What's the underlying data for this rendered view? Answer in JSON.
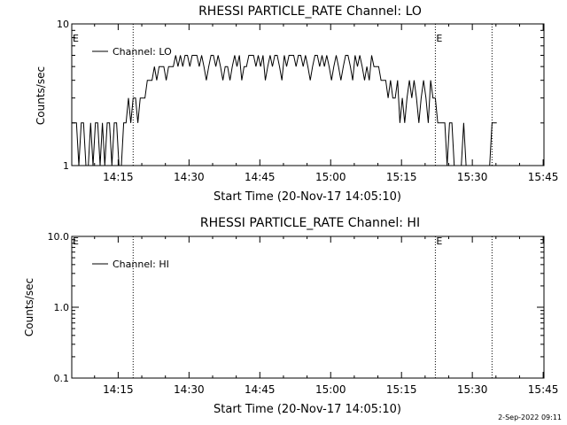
{
  "chart_data": [
    {
      "type": "line",
      "title": "RHESSI PARTICLE_RATE Channel: LO",
      "xlabel": "Start Time (20-Nov-17 14:05:10)",
      "ylabel": "Counts/sec",
      "yscale": "log",
      "ylim": [
        1,
        10
      ],
      "yticks": [
        {
          "v": 1,
          "label": "1"
        },
        {
          "v": 10,
          "label": "10"
        }
      ],
      "xticks": [
        "14:15",
        "14:30",
        "14:45",
        "15:00",
        "15:15",
        "15:30",
        "15:45"
      ],
      "xlim_minutes_after_start": [
        0,
        100
      ],
      "tick_minutes_after_start": [
        9.83,
        24.83,
        39.83,
        54.83,
        69.83,
        84.83,
        99.83
      ],
      "event_lines_minutes_after_start": [
        13,
        77,
        89
      ],
      "event_labels": [
        "E",
        "E"
      ],
      "legend": {
        "name": "Channel: LO",
        "position": "top-left"
      },
      "series": [
        {
          "name": "Channel: LO",
          "x": [
            0,
            0.5,
            1,
            1.5,
            2,
            2.5,
            3,
            3.5,
            4,
            4.5,
            5,
            5.5,
            6,
            6.5,
            7,
            7.5,
            8,
            8.5,
            9,
            9.5,
            10,
            10.5,
            11,
            11.5,
            12,
            12.5,
            13,
            13.5,
            14,
            14.5,
            15,
            15.5,
            16,
            16.5,
            17,
            17.5,
            18,
            18.5,
            19,
            19.5,
            20,
            20.5,
            21,
            21.5,
            22,
            22.5,
            23,
            23.5,
            24,
            24.5,
            25,
            25.5,
            26,
            26.5,
            27,
            27.5,
            28,
            28.5,
            29,
            29.5,
            30,
            30.5,
            31,
            31.5,
            32,
            32.5,
            33,
            33.5,
            34,
            34.5,
            35,
            35.5,
            36,
            36.5,
            37,
            37.5,
            38,
            38.5,
            39,
            39.5,
            40,
            40.5,
            41,
            41.5,
            42,
            42.5,
            43,
            43.5,
            44,
            44.5,
            45,
            45.5,
            46,
            46.5,
            47,
            47.5,
            48,
            48.5,
            49,
            49.5,
            50,
            50.5,
            51,
            51.5,
            52,
            52.5,
            53,
            53.5,
            54,
            54.5,
            55,
            55.5,
            56,
            56.5,
            57,
            57.5,
            58,
            58.5,
            59,
            59.5,
            60,
            60.5,
            61,
            61.5,
            62,
            62.5,
            63,
            63.5,
            64,
            64.5,
            65,
            65.5,
            66,
            66.5,
            67,
            67.5,
            68,
            68.5,
            69,
            69.5,
            70,
            70.5,
            71,
            71.5,
            72,
            72.5,
            73,
            73.5,
            74,
            74.5,
            75,
            75.5,
            76,
            76.5,
            77,
            77.5,
            78,
            78.5,
            79,
            79.5,
            80,
            80.5,
            81,
            81.5,
            82,
            82.5,
            83,
            83.5,
            84,
            84.5,
            85,
            85.5,
            86,
            86.5,
            87,
            87.5,
            88,
            88.5,
            89,
            89.5,
            90
          ],
          "y": [
            2,
            2,
            2,
            1,
            2,
            2,
            1,
            1,
            2,
            1,
            2,
            2,
            1,
            2,
            1,
            2,
            2,
            1,
            2,
            2,
            1,
            1,
            2,
            2,
            3,
            2,
            3,
            3,
            2,
            3,
            3,
            3,
            4,
            4,
            4,
            5,
            4,
            5,
            5,
            5,
            4,
            5,
            5,
            5,
            6,
            5,
            6,
            5,
            6,
            6,
            5,
            6,
            6,
            6,
            5,
            6,
            5,
            4,
            5,
            6,
            6,
            5,
            6,
            5,
            4,
            5,
            5,
            4,
            5,
            6,
            5,
            6,
            4,
            5,
            5,
            6,
            6,
            6,
            5,
            6,
            5,
            6,
            4,
            5,
            6,
            5,
            6,
            6,
            5,
            4,
            6,
            5,
            6,
            6,
            6,
            5,
            6,
            6,
            5,
            6,
            5,
            4,
            5,
            6,
            6,
            5,
            6,
            5,
            6,
            5,
            4,
            5,
            6,
            5,
            4,
            5,
            6,
            6,
            5,
            4,
            6,
            5,
            6,
            5,
            4,
            5,
            4,
            6,
            5,
            5,
            5,
            4,
            4,
            4,
            3,
            4,
            3,
            3,
            4,
            2,
            3,
            2,
            3,
            4,
            3,
            4,
            3,
            2,
            3,
            4,
            3,
            2,
            4,
            3,
            3,
            2,
            2,
            2,
            2,
            1,
            2,
            2,
            1,
            1,
            1,
            1,
            2,
            1,
            1,
            1,
            1,
            1,
            1,
            1,
            1,
            1,
            1,
            1,
            2,
            2,
            2
          ]
        }
      ]
    },
    {
      "type": "line",
      "title": "RHESSI PARTICLE_RATE Channel: HI",
      "xlabel": "Start Time (20-Nov-17 14:05:10)",
      "ylabel": "Counts/sec",
      "yscale": "log",
      "ylim": [
        0.1,
        10
      ],
      "yticks": [
        {
          "v": 0.1,
          "label": "0.1"
        },
        {
          "v": 1,
          "label": "1.0"
        },
        {
          "v": 10,
          "label": "10.0"
        }
      ],
      "xticks": [
        "14:15",
        "14:30",
        "14:45",
        "15:00",
        "15:15",
        "15:30",
        "15:45"
      ],
      "xlim_minutes_after_start": [
        0,
        100
      ],
      "tick_minutes_after_start": [
        9.83,
        24.83,
        39.83,
        54.83,
        69.83,
        84.83,
        99.83
      ],
      "event_lines_minutes_after_start": [
        13,
        77,
        89
      ],
      "event_labels": [
        "E",
        "E"
      ],
      "legend": {
        "name": "Channel: HI",
        "position": "top-left"
      },
      "series": [
        {
          "name": "Channel: HI",
          "x": [],
          "y": []
        }
      ]
    }
  ],
  "footer": {
    "date": "2-Sep-2022 09:11"
  }
}
